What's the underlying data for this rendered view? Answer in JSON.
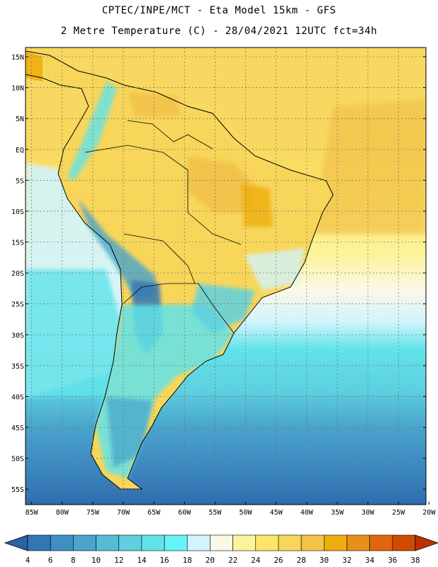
{
  "header": {
    "line1": "CPTEC/INPE/MCT  -   Eta Model 15km  -  GFS",
    "line2": "2 Metre Temperature (C) - 28/04/2021 12UTC fct=34h"
  },
  "map": {
    "lat_labels": [
      "15N",
      "10N",
      "5N",
      "EQ",
      "5S",
      "10S",
      "15S",
      "20S",
      "25S",
      "30S",
      "35S",
      "40S",
      "45S",
      "50S",
      "55S"
    ],
    "lon_labels": [
      "85W",
      "80W",
      "75W",
      "70W",
      "65W",
      "60W",
      "55W",
      "50W",
      "45W",
      "40W",
      "35W",
      "30W",
      "25W",
      "20W"
    ],
    "lat_values": [
      15,
      10,
      5,
      0,
      -5,
      -10,
      -15,
      -20,
      -25,
      -30,
      -35,
      -40,
      -45,
      -50,
      -55
    ],
    "lon_values": [
      -85,
      -80,
      -75,
      -70,
      -65,
      -60,
      -55,
      -50,
      -45,
      -40,
      -35,
      -30,
      -25,
      -20
    ],
    "lat_range": [
      -57.5,
      16.5
    ],
    "lon_range": [
      -86,
      -20.5
    ]
  },
  "colorbar": {
    "labels": [
      "4",
      "6",
      "8",
      "10",
      "12",
      "14",
      "16",
      "18",
      "20",
      "22",
      "24",
      "26",
      "28",
      "30",
      "32",
      "34",
      "36",
      "38"
    ],
    "colors": [
      "#2b62a8",
      "#3376b4",
      "#3f8ec4",
      "#4aa4cc",
      "#55bcd8",
      "#5ed0e0",
      "#62e3ea",
      "#66f4f8",
      "#d2f4fc",
      "#fcf8e6",
      "#fcf49a",
      "#fce66a",
      "#f8d65a",
      "#f2c24a",
      "#eeae0e",
      "#e88e1a",
      "#e0660e",
      "#d04a02",
      "#be3002"
    ]
  }
}
